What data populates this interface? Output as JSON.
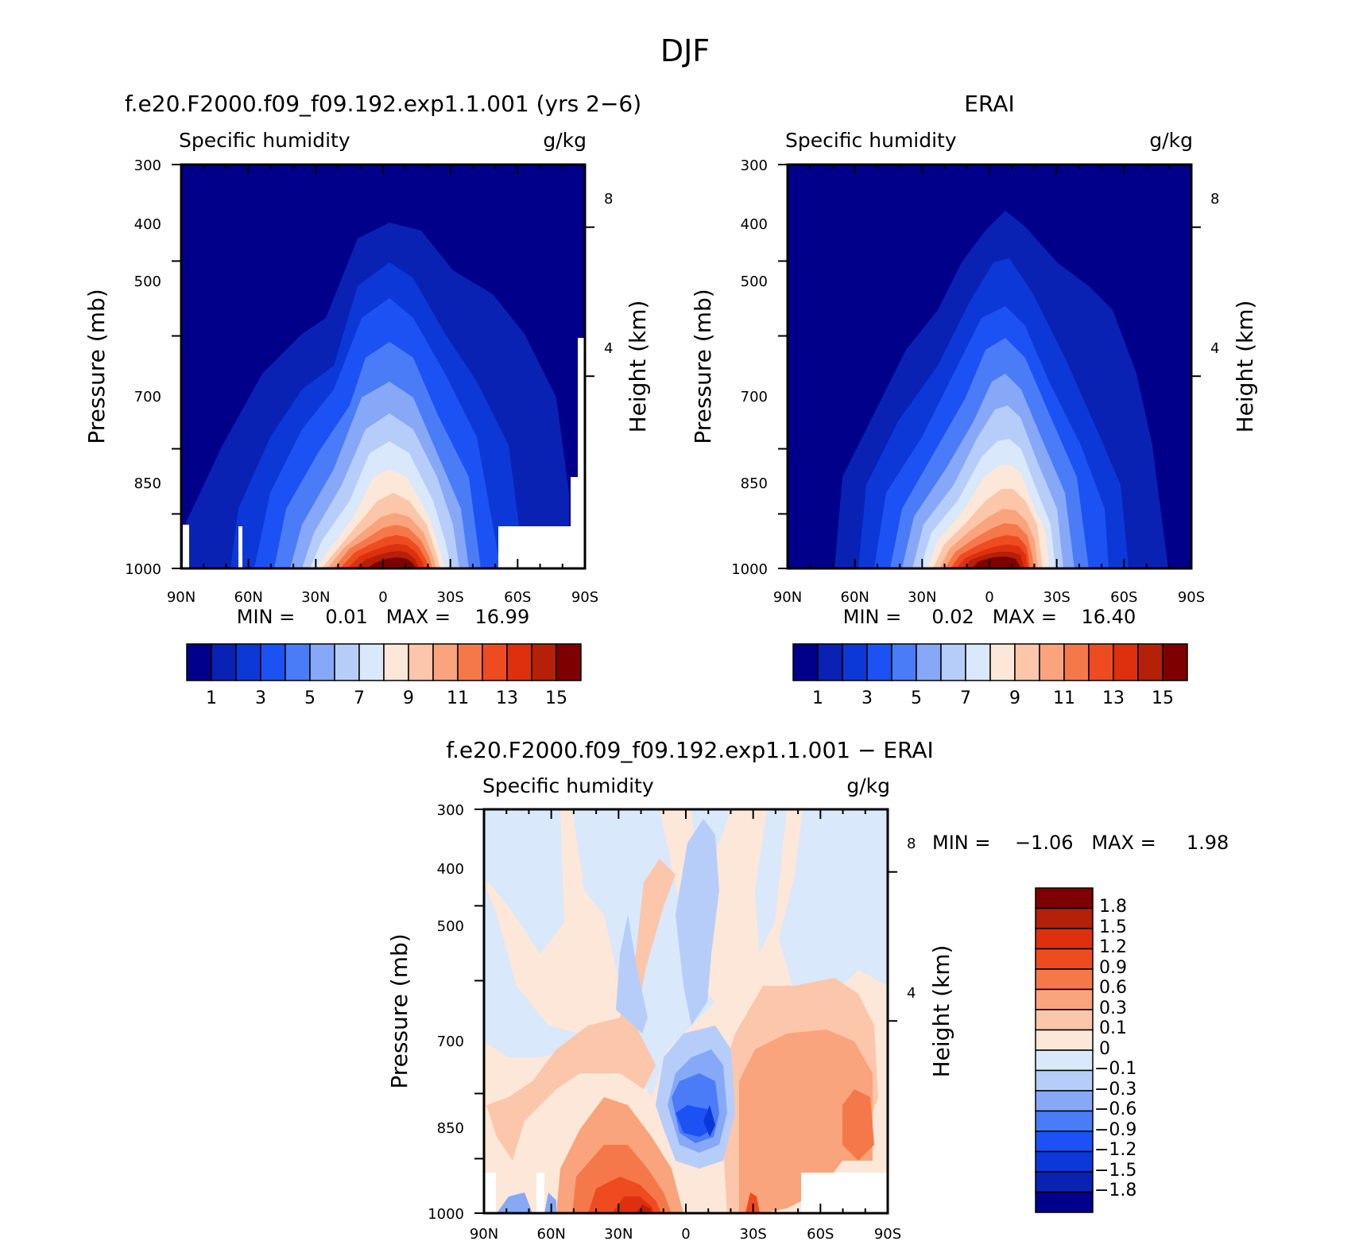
{
  "figure_title": "DJF",
  "colors": {
    "model_obs_palette": [
      "#00008a",
      "#0a22b4",
      "#0d38d8",
      "#1c52f4",
      "#4a7cf7",
      "#86a8f7",
      "#b7cdf9",
      "#d9e8fb",
      "#fde7d8",
      "#fcc6aa",
      "#f9a47c",
      "#f5784b",
      "#ef4b21",
      "#de300e",
      "#b42008",
      "#7f0000"
    ],
    "diff_palette": [
      "#00008a",
      "#0a22b4",
      "#0d38d8",
      "#1c52f4",
      "#4a7cf7",
      "#86a8f7",
      "#b7cdf9",
      "#d9e8fb",
      "#fde7d8",
      "#fcc6aa",
      "#f9a47c",
      "#f5784b",
      "#ef4b21",
      "#de300e",
      "#b42008",
      "#7f0000"
    ]
  },
  "panels": [
    {
      "title": "f.e20.F2000.f09_f09.192.exp1.1.001 (yrs 2−6)",
      "left_label": "Specific humidity",
      "right_label": "g/kg",
      "ylabel": "Pressure (mb)",
      "y2label": "Height (km)",
      "min_text": "MIN =     0.01   MAX =    16.99",
      "x_ticks": [
        "90N",
        "60N",
        "30N",
        "0",
        "30S",
        "60S",
        "90S"
      ],
      "y_ticks": [
        "300",
        "400",
        "500",
        "700",
        "850",
        "1000"
      ],
      "y2_ticks": [
        "8",
        "4"
      ],
      "colorbar_labels": [
        "1",
        "3",
        "5",
        "7",
        "9",
        "11",
        "13",
        "15"
      ]
    },
    {
      "title": "ERAI",
      "left_label": "Specific humidity",
      "right_label": "g/kg",
      "ylabel": "Pressure (mb)",
      "y2label": "Height (km)",
      "min_text": "MIN =     0.02   MAX =    16.40",
      "x_ticks": [
        "90N",
        "60N",
        "30N",
        "0",
        "30S",
        "60S",
        "90S"
      ],
      "y_ticks": [
        "300",
        "400",
        "500",
        "700",
        "850",
        "1000"
      ],
      "y2_ticks": [
        "8",
        "4"
      ],
      "colorbar_labels": [
        "1",
        "3",
        "5",
        "7",
        "9",
        "11",
        "13",
        "15"
      ]
    },
    {
      "title": "f.e20.F2000.f09_f09.192.exp1.1.001 − ERAI",
      "left_label": "Specific humidity",
      "right_label": "g/kg",
      "ylabel": "Pressure (mb)",
      "y2label": "Height (km)",
      "min_text": "MIN =    −1.06   MAX =     1.98",
      "x_ticks": [
        "90N",
        "60N",
        "30N",
        "0",
        "30S",
        "60S",
        "90S"
      ],
      "y_ticks": [
        "300",
        "400",
        "500",
        "700",
        "850",
        "1000"
      ],
      "y2_ticks": [
        "8",
        "4"
      ],
      "colorbar_labels": [
        "1.8",
        "1.5",
        "1.2",
        "0.9",
        "0.6",
        "0.3",
        "0.1",
        "0",
        "−0.1",
        "−0.3",
        "−0.6",
        "−0.9",
        "−1.2",
        "−1.5",
        "−1.8"
      ]
    }
  ],
  "chart_data": [
    {
      "type": "heatmap",
      "title": "f.e20.F2000.f09_f09.192.exp1.1.001 (yrs 2−6)",
      "xlabel": "",
      "ylabel": "Pressure (mb)",
      "x_categories": [
        "90N",
        "60N",
        "30N",
        "0",
        "30S",
        "60S",
        "90S"
      ],
      "xlim": [
        90,
        -90
      ],
      "ylim": [
        1000,
        300
      ],
      "y_scale": "log",
      "contour_levels": [
        1,
        2,
        3,
        4,
        5,
        6,
        7,
        8,
        9,
        10,
        11,
        12,
        13,
        14,
        15
      ],
      "min": 0.01,
      "max": 16.99,
      "peak_location": {
        "lat": -2,
        "pressure": 1000
      },
      "profile_surface_1000mb": {
        "lat": [
          90,
          60,
          30,
          0,
          -30,
          -60,
          -90
        ],
        "value": [
          1.5,
          3.5,
          9,
          17,
          11,
          3,
          1
        ]
      }
    },
    {
      "type": "heatmap",
      "title": "ERAI",
      "xlabel": "",
      "ylabel": "Pressure (mb)",
      "x_categories": [
        "90N",
        "60N",
        "30N",
        "0",
        "30S",
        "60S",
        "90S"
      ],
      "xlim": [
        90,
        -90
      ],
      "ylim": [
        1000,
        300
      ],
      "y_scale": "log",
      "contour_levels": [
        1,
        2,
        3,
        4,
        5,
        6,
        7,
        8,
        9,
        10,
        11,
        12,
        13,
        14,
        15
      ],
      "min": 0.02,
      "max": 16.4,
      "peak_location": {
        "lat": -3,
        "pressure": 1000
      },
      "profile_surface_1000mb": {
        "lat": [
          90,
          60,
          30,
          0,
          -30,
          -60,
          -90
        ],
        "value": [
          1,
          3,
          9,
          16.4,
          10,
          3,
          1
        ]
      }
    },
    {
      "type": "heatmap",
      "title": "f.e20.F2000.f09_f09.192.exp1.1.001 − ERAI",
      "xlabel": "",
      "ylabel": "Pressure (mb)",
      "x_categories": [
        "90N",
        "60N",
        "30N",
        "0",
        "30S",
        "60S",
        "90S"
      ],
      "xlim": [
        90,
        -90
      ],
      "ylim": [
        1000,
        300
      ],
      "y_scale": "log",
      "contour_levels": [
        -1.8,
        -1.5,
        -1.2,
        -0.9,
        -0.6,
        -0.3,
        -0.1,
        0,
        0.1,
        0.3,
        0.6,
        0.9,
        1.2,
        1.5,
        1.8
      ],
      "min": -1.06,
      "max": 1.98,
      "features": [
        {
          "lat": 8,
          "pressure": 960,
          "value": 1.98
        },
        {
          "lat": -10,
          "pressure": 800,
          "value": -1.06
        },
        {
          "lat": -30,
          "pressure": 950,
          "value": 1.2
        }
      ]
    }
  ]
}
